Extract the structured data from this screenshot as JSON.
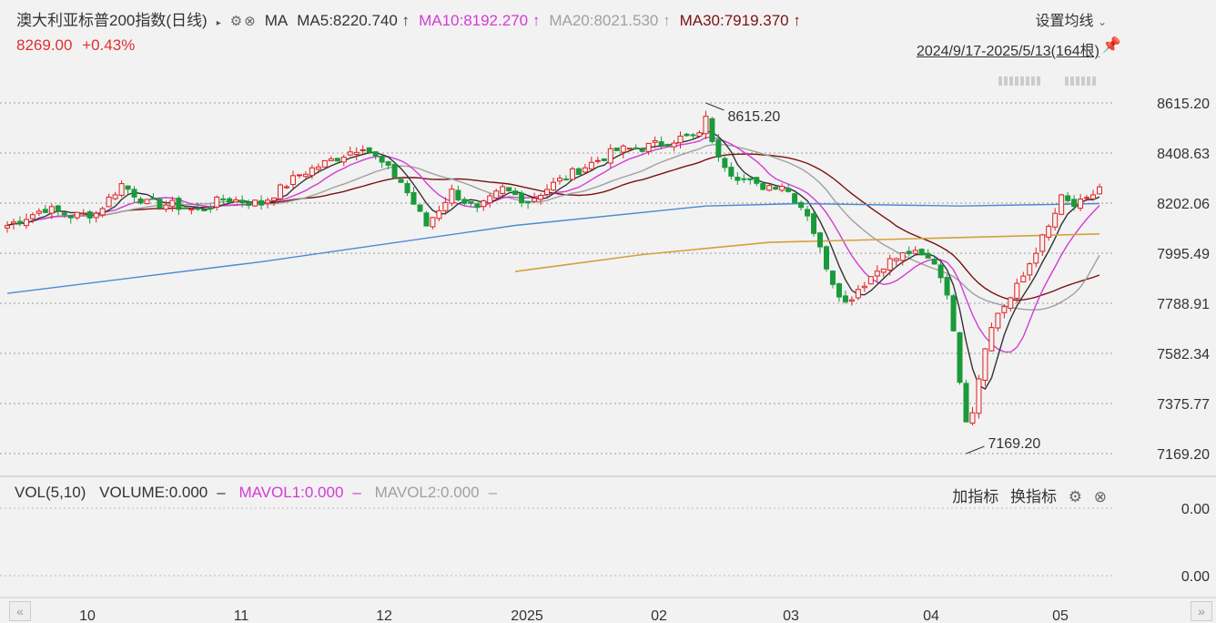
{
  "header": {
    "title": "澳大利亚标普200指数(日线)",
    "ma_label": "MA",
    "ma5": "MA5:8220.740 ↑",
    "ma10": "MA10:8192.270 ↑",
    "ma20": "MA20:8021.530 ↑",
    "ma30": "MA30:7919.370 ↑",
    "settings": "设置均线",
    "price": "8269.00",
    "change": "+0.43%",
    "range": "2024/9/17-2025/5/13(164根)"
  },
  "volume_panel": {
    "vol": "VOL(5,10)",
    "volume": "VOLUME:0.000",
    "mavol1": "MAVOL1:0.000",
    "mavol2": "MAVOL2:0.000",
    "add_indicator": "加指标",
    "switch_indicator": "换指标",
    "ylabels": [
      "0.00",
      "0.00"
    ]
  },
  "colors": {
    "up": "#e02020",
    "down": "#1a9a3a",
    "ma5": "#333333",
    "ma10": "#d43bd4",
    "ma20": "#a0a0a0",
    "ma30": "#7a1212",
    "ma_long1": "#4a8ad4",
    "ma_long2": "#d4a03a"
  },
  "chart_data": {
    "type": "candlestick",
    "ylim": [
      7169.2,
      8615.2
    ],
    "yticks": [
      "8615.20",
      "8408.63",
      "8202.06",
      "7995.49",
      "7788.91",
      "7582.34",
      "7375.77",
      "7169.20"
    ],
    "xticks": [
      "10",
      "11",
      "12",
      "2025",
      "02",
      "03",
      "04",
      "05"
    ],
    "annotations": [
      {
        "label": "8615.20",
        "type": "high"
      },
      {
        "label": "7169.20",
        "type": "low"
      }
    ],
    "waypoints": [
      [
        0,
        8110
      ],
      [
        6,
        8180
      ],
      [
        10,
        8150
      ],
      [
        14,
        8160
      ],
      [
        18,
        8280
      ],
      [
        22,
        8200
      ],
      [
        26,
        8195
      ],
      [
        30,
        8170
      ],
      [
        34,
        8220
      ],
      [
        40,
        8200
      ],
      [
        46,
        8320
      ],
      [
        52,
        8390
      ],
      [
        56,
        8440
      ],
      [
        62,
        8290
      ],
      [
        66,
        8110
      ],
      [
        70,
        8250
      ],
      [
        74,
        8170
      ],
      [
        78,
        8260
      ],
      [
        82,
        8210
      ],
      [
        86,
        8280
      ],
      [
        90,
        8340
      ],
      [
        96,
        8420
      ],
      [
        100,
        8430
      ],
      [
        106,
        8470
      ],
      [
        110,
        8480
      ],
      [
        114,
        8330
      ],
      [
        118,
        8270
      ],
      [
        122,
        8280
      ],
      [
        126,
        8160
      ],
      [
        128,
        8010
      ],
      [
        130,
        7880
      ],
      [
        132,
        7790
      ],
      [
        134,
        7850
      ],
      [
        138,
        7950
      ],
      [
        142,
        8000
      ],
      [
        146,
        7960
      ],
      [
        148,
        7840
      ],
      [
        150,
        7480
      ],
      [
        152,
        7350
      ],
      [
        154,
        7620
      ],
      [
        156,
        7750
      ],
      [
        158,
        7810
      ],
      [
        160,
        7900
      ],
      [
        162,
        8010
      ],
      [
        164,
        8100
      ],
      [
        166,
        8220
      ],
      [
        168,
        8190
      ],
      [
        170,
        8210
      ],
      [
        172,
        8269
      ]
    ],
    "ma_long1": [
      [
        0,
        7830
      ],
      [
        40,
        7960
      ],
      [
        80,
        8110
      ],
      [
        110,
        8190
      ],
      [
        125,
        8200
      ],
      [
        150,
        8190
      ],
      [
        172,
        8200
      ]
    ],
    "ma_long2": [
      [
        80,
        7920
      ],
      [
        100,
        7990
      ],
      [
        120,
        8040
      ],
      [
        150,
        8060
      ],
      [
        172,
        8075
      ]
    ]
  }
}
